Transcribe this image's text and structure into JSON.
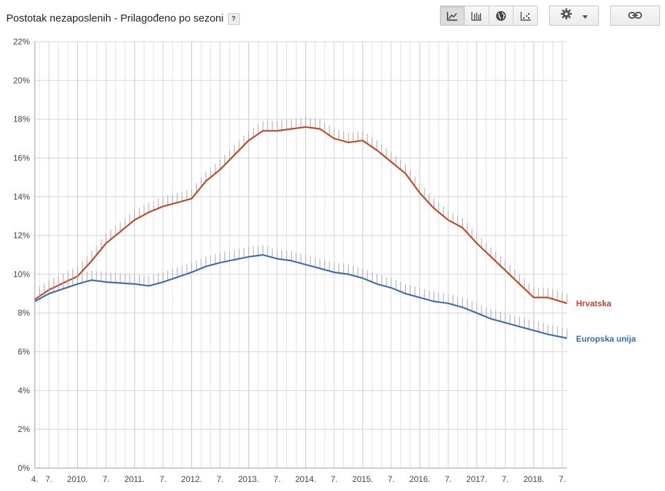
{
  "header": {
    "title": "Postotak nezaposlenih - Prilagođeno po sezoni",
    "help": "?"
  },
  "toolbar": {
    "chart_types": [
      "line-chart-icon",
      "bar-chart-icon",
      "map-globe-icon",
      "scatter-icon"
    ],
    "active": "line-chart-icon",
    "settings_icon": "gear-icon",
    "link_icon": "link-icon"
  },
  "colors": {
    "hrvatska": "#c0452b",
    "eu": "#3d6cae",
    "grid": "#e3e3e3",
    "grid_major": "#c9c9c9"
  },
  "chart_data": {
    "type": "line",
    "title": "Postotak nezaposlenih - Prilagođeno po sezoni",
    "xlabel": "",
    "ylabel": "",
    "ylim": [
      0,
      22
    ],
    "y_ticks": [
      "0%",
      "2%",
      "4%",
      "6%",
      "8%",
      "10%",
      "12%",
      "14%",
      "16%",
      "18%",
      "20%",
      "22%"
    ],
    "x_range": [
      "2009-04",
      "2018-08"
    ],
    "x_ticks": [
      {
        "x": "2009-04",
        "label": "4."
      },
      {
        "x": "2009-07",
        "label": "7."
      },
      {
        "x": "2010-01",
        "label": "2010."
      },
      {
        "x": "2010-07",
        "label": "7."
      },
      {
        "x": "2011-01",
        "label": "2011."
      },
      {
        "x": "2011-07",
        "label": "7."
      },
      {
        "x": "2012-01",
        "label": "2012."
      },
      {
        "x": "2012-07",
        "label": "7."
      },
      {
        "x": "2013-01",
        "label": "2013."
      },
      {
        "x": "2013-07",
        "label": "7."
      },
      {
        "x": "2014-01",
        "label": "2014."
      },
      {
        "x": "2014-07",
        "label": "7."
      },
      {
        "x": "2015-01",
        "label": "2015."
      },
      {
        "x": "2015-07",
        "label": "7."
      },
      {
        "x": "2016-01",
        "label": "2016."
      },
      {
        "x": "2016-07",
        "label": "7."
      },
      {
        "x": "2017-01",
        "label": "2017."
      },
      {
        "x": "2017-07",
        "label": "7."
      },
      {
        "x": "2018-01",
        "label": "2018."
      },
      {
        "x": "2018-07",
        "label": "7."
      }
    ],
    "grid": true,
    "legend": "right, at line ends",
    "series": [
      {
        "name": "Hrvatska",
        "points": [
          [
            "2009-04",
            8.7
          ],
          [
            "2009-07",
            9.2
          ],
          [
            "2010-01",
            9.9
          ],
          [
            "2010-04",
            10.7
          ],
          [
            "2010-07",
            11.6
          ],
          [
            "2011-01",
            12.8
          ],
          [
            "2011-04",
            13.2
          ],
          [
            "2011-07",
            13.5
          ],
          [
            "2012-01",
            13.9
          ],
          [
            "2012-04",
            14.8
          ],
          [
            "2012-07",
            15.4
          ],
          [
            "2013-01",
            16.9
          ],
          [
            "2013-04",
            17.4
          ],
          [
            "2013-07",
            17.4
          ],
          [
            "2013-10",
            17.5
          ],
          [
            "2014-01",
            17.6
          ],
          [
            "2014-04",
            17.5
          ],
          [
            "2014-07",
            17.0
          ],
          [
            "2014-10",
            16.8
          ],
          [
            "2015-01",
            16.9
          ],
          [
            "2015-04",
            16.4
          ],
          [
            "2015-07",
            15.8
          ],
          [
            "2015-10",
            15.2
          ],
          [
            "2016-01",
            14.2
          ],
          [
            "2016-04",
            13.4
          ],
          [
            "2016-07",
            12.8
          ],
          [
            "2016-10",
            12.4
          ],
          [
            "2017-01",
            11.6
          ],
          [
            "2017-04",
            10.9
          ],
          [
            "2017-07",
            10.2
          ],
          [
            "2017-10",
            9.5
          ],
          [
            "2018-01",
            8.8
          ],
          [
            "2018-04",
            8.8
          ],
          [
            "2018-08",
            8.5
          ]
        ]
      },
      {
        "name": "Europska unija",
        "points": [
          [
            "2009-04",
            8.6
          ],
          [
            "2009-07",
            9.0
          ],
          [
            "2010-01",
            9.5
          ],
          [
            "2010-04",
            9.7
          ],
          [
            "2010-07",
            9.6
          ],
          [
            "2011-01",
            9.5
          ],
          [
            "2011-04",
            9.4
          ],
          [
            "2011-07",
            9.6
          ],
          [
            "2012-01",
            10.1
          ],
          [
            "2012-04",
            10.4
          ],
          [
            "2012-07",
            10.6
          ],
          [
            "2013-01",
            10.9
          ],
          [
            "2013-04",
            11.0
          ],
          [
            "2013-07",
            10.8
          ],
          [
            "2013-10",
            10.7
          ],
          [
            "2014-01",
            10.5
          ],
          [
            "2014-04",
            10.3
          ],
          [
            "2014-07",
            10.1
          ],
          [
            "2014-10",
            10.0
          ],
          [
            "2015-01",
            9.8
          ],
          [
            "2015-04",
            9.5
          ],
          [
            "2015-07",
            9.3
          ],
          [
            "2015-10",
            9.0
          ],
          [
            "2016-01",
            8.8
          ],
          [
            "2016-04",
            8.6
          ],
          [
            "2016-07",
            8.5
          ],
          [
            "2016-10",
            8.3
          ],
          [
            "2017-01",
            8.0
          ],
          [
            "2017-04",
            7.7
          ],
          [
            "2017-07",
            7.5
          ],
          [
            "2017-10",
            7.3
          ],
          [
            "2018-01",
            7.1
          ],
          [
            "2018-04",
            6.9
          ],
          [
            "2018-08",
            6.7
          ]
        ]
      }
    ]
  }
}
